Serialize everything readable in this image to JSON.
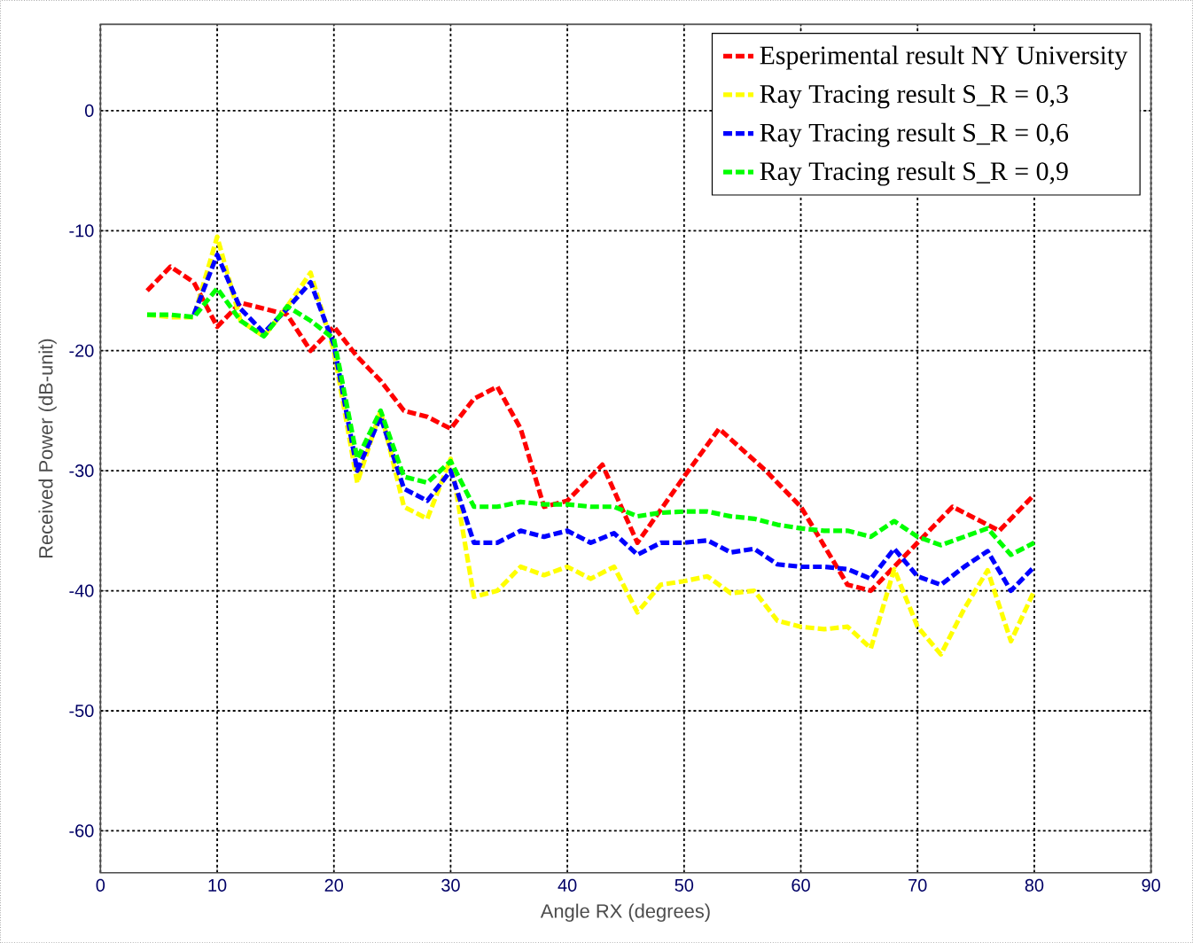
{
  "chart_data": {
    "type": "line",
    "xlabel": "Angle RX (degrees)",
    "ylabel": "Received Power (dB-unit)",
    "xlim": [
      0,
      90
    ],
    "xticks": [
      0,
      10,
      20,
      30,
      40,
      50,
      60,
      70,
      80,
      90
    ],
    "ylim": [
      -63.5,
      7.2
    ],
    "yticks": [
      -60,
      -50,
      -40,
      -30,
      -20,
      -10,
      0
    ],
    "grid": true,
    "legend": "top right",
    "marker": "none",
    "line_style": "dashed",
    "series": [
      {
        "name": "Esperimental result NY University",
        "color": "#ff0000",
        "x": [
          4,
          6,
          8,
          10,
          12,
          14,
          16,
          18,
          20,
          22,
          24,
          26,
          28,
          30,
          32,
          34,
          36,
          38,
          40,
          43,
          46,
          50,
          53,
          57,
          60,
          64,
          66,
          70,
          73,
          77,
          80
        ],
        "values": [
          -15,
          -13,
          -14.3,
          -18,
          -16,
          -16.5,
          -17,
          -20,
          -18,
          -20.5,
          -22.5,
          -25,
          -25.5,
          -26.5,
          -24,
          -23,
          -26.5,
          -33,
          -32.5,
          -29.5,
          -36,
          -30.5,
          -26.5,
          -30,
          -33,
          -39.5,
          -40,
          -36,
          -33,
          -35,
          -32
        ]
      },
      {
        "name": "Ray Tracing result S_R = 0,3",
        "color": "#ffff00",
        "x": [
          4,
          6,
          8,
          10,
          12,
          14,
          16,
          18,
          20,
          22,
          24,
          26,
          28,
          30,
          32,
          34,
          36,
          38,
          40,
          42,
          44,
          46,
          48,
          50,
          52,
          54,
          56,
          58,
          60,
          62,
          64,
          66,
          68,
          70,
          72,
          74,
          76,
          78,
          80
        ],
        "values": [
          -17,
          -17.2,
          -17.2,
          -10.5,
          -17.5,
          -18.8,
          -16.3,
          -13.5,
          -20,
          -31,
          -25,
          -33,
          -34,
          -29,
          -40.5,
          -40,
          -38,
          -38.7,
          -38,
          -39,
          -38,
          -41.8,
          -39.5,
          -39.2,
          -38.8,
          -40.2,
          -40,
          -42.5,
          -43,
          -43.2,
          -43,
          -44.8,
          -38.2,
          -43,
          -45.3,
          -41.5,
          -38.3,
          -44.2,
          -40
        ]
      },
      {
        "name": "Ray Tracing result S_R = 0,6",
        "color": "#0000ff",
        "x": [
          8,
          10,
          12,
          14,
          16,
          18,
          20,
          22,
          24,
          26,
          28,
          30,
          32,
          34,
          36,
          38,
          40,
          42,
          44,
          46,
          48,
          50,
          52,
          54,
          56,
          58,
          60,
          62,
          64,
          66,
          68,
          70,
          72,
          74,
          76,
          78,
          80
        ],
        "values": [
          -17,
          -12,
          -16.5,
          -18.5,
          -16.5,
          -14.3,
          -19.5,
          -30,
          -25.5,
          -31.5,
          -32.5,
          -30,
          -36,
          -36,
          -35,
          -35.5,
          -35,
          -36,
          -35.2,
          -37,
          -36,
          -36,
          -35.8,
          -36.8,
          -36.5,
          -37.8,
          -38,
          -38,
          -38.2,
          -39,
          -36.5,
          -38.8,
          -39.5,
          -38,
          -36.7,
          -40,
          -38
        ]
      },
      {
        "name": "Ray Tracing result S_R = 0,9",
        "color": "#00ff00",
        "x": [
          4,
          6,
          8,
          10,
          12,
          14,
          16,
          18,
          20,
          22,
          24,
          26,
          28,
          30,
          32,
          34,
          36,
          38,
          40,
          42,
          44,
          46,
          48,
          50,
          52,
          54,
          56,
          58,
          60,
          62,
          64,
          66,
          68,
          70,
          72,
          74,
          76,
          78,
          80
        ],
        "values": [
          -17,
          -17,
          -17.2,
          -14.8,
          -17.5,
          -18.8,
          -16.3,
          -17.5,
          -19,
          -29,
          -25,
          -30.5,
          -31,
          -29.2,
          -33,
          -33,
          -32.6,
          -32.8,
          -32.8,
          -33,
          -33,
          -33.8,
          -33.5,
          -33.4,
          -33.4,
          -33.8,
          -34,
          -34.5,
          -34.8,
          -35,
          -35,
          -35.5,
          -34.2,
          -35.5,
          -36.2,
          -35.5,
          -34.8,
          -37,
          -36
        ]
      }
    ]
  }
}
